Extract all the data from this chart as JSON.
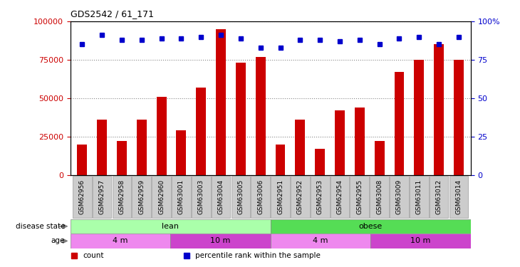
{
  "title": "GDS2542 / 61_171",
  "samples": [
    "GSM62956",
    "GSM62957",
    "GSM62958",
    "GSM62959",
    "GSM62960",
    "GSM63001",
    "GSM63003",
    "GSM63004",
    "GSM63005",
    "GSM63006",
    "GSM62951",
    "GSM62952",
    "GSM62953",
    "GSM62954",
    "GSM62955",
    "GSM63008",
    "GSM63009",
    "GSM63011",
    "GSM63012",
    "GSM63014"
  ],
  "counts": [
    20000,
    36000,
    22000,
    36000,
    51000,
    29000,
    57000,
    95000,
    73000,
    77000,
    20000,
    36000,
    17000,
    42000,
    44000,
    22000,
    67000,
    75000,
    85000,
    75000
  ],
  "percentiles": [
    85,
    91,
    88,
    88,
    89,
    89,
    90,
    91,
    89,
    83,
    83,
    88,
    88,
    87,
    88,
    85,
    89,
    90,
    85,
    90
  ],
  "bar_color": "#cc0000",
  "dot_color": "#0000cc",
  "disease_state_groups": [
    {
      "label": "lean",
      "start": 0,
      "end": 10,
      "color": "#aaffaa"
    },
    {
      "label": "obese",
      "start": 10,
      "end": 20,
      "color": "#55dd55"
    }
  ],
  "age_groups": [
    {
      "label": "4 m",
      "start": 0,
      "end": 5,
      "color": "#ee88ee"
    },
    {
      "label": "10 m",
      "start": 5,
      "end": 10,
      "color": "#cc44cc"
    },
    {
      "label": "4 m",
      "start": 10,
      "end": 15,
      "color": "#ee88ee"
    },
    {
      "label": "10 m",
      "start": 15,
      "end": 20,
      "color": "#cc44cc"
    }
  ],
  "ylim_left": [
    0,
    100000
  ],
  "ylim_right": [
    0,
    100
  ],
  "yticks_left": [
    0,
    25000,
    50000,
    75000,
    100000
  ],
  "ytick_labels_left": [
    "0",
    "25000",
    "50000",
    "75000",
    "100000"
  ],
  "yticks_right": [
    0,
    25,
    50,
    75,
    100
  ],
  "ytick_labels_right": [
    "0",
    "25",
    "50",
    "75",
    "100%"
  ],
  "legend_items": [
    {
      "label": "count",
      "color": "#cc0000"
    },
    {
      "label": "percentile rank within the sample",
      "color": "#0000cc"
    }
  ],
  "background_color": "#ffffff",
  "grid_color": "#888888",
  "xlabel_box_color": "#cccccc",
  "xlabel_box_edge": "#999999"
}
